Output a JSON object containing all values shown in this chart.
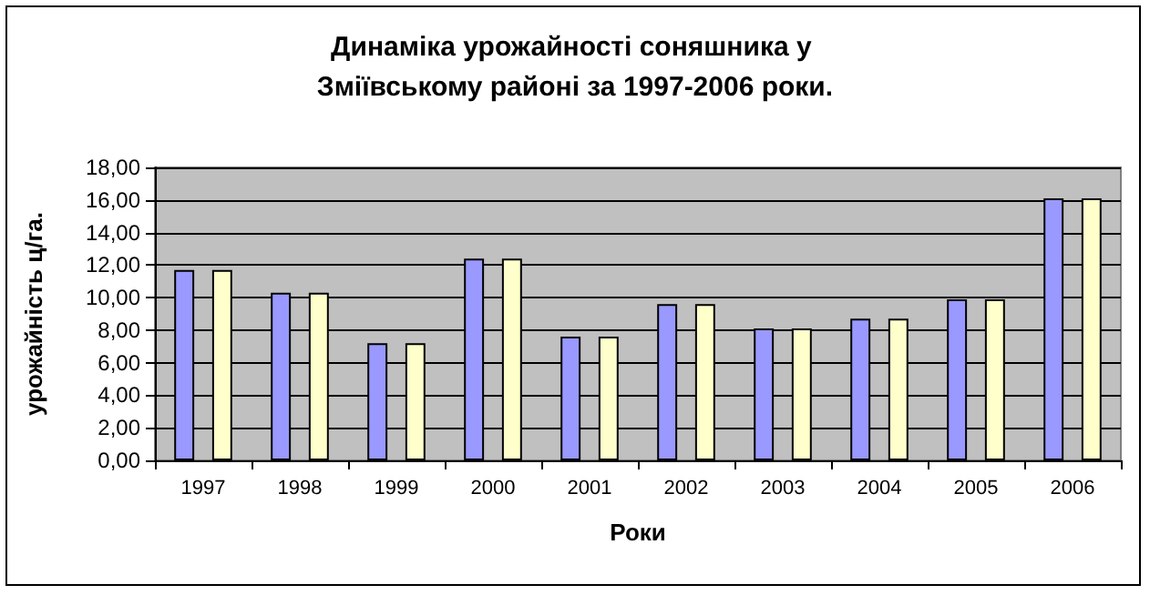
{
  "chart_data": {
    "type": "bar",
    "title": "Динаміка урожайності соняшника у Зміївському районі за 1997-2006 роки.",
    "xlabel": "Роки",
    "ylabel": "урожайність ц/га.",
    "categories": [
      "1997",
      "1998",
      "1999",
      "2000",
      "2001",
      "2002",
      "2003",
      "2004",
      "2005",
      "2006"
    ],
    "series": [
      {
        "color": "#9999ff",
        "values": [
          11.7,
          10.3,
          7.2,
          12.4,
          7.6,
          9.6,
          8.1,
          8.7,
          9.9,
          16.1
        ]
      },
      {
        "color": "#ffffcc",
        "values": [
          11.7,
          10.3,
          7.2,
          12.4,
          7.6,
          9.6,
          8.1,
          8.7,
          9.9,
          16.1
        ]
      }
    ],
    "ylim": [
      0,
      18
    ],
    "yticks": [
      {
        "value": 0,
        "label": "0,00"
      },
      {
        "value": 2,
        "label": "2,00"
      },
      {
        "value": 4,
        "label": "4,00"
      },
      {
        "value": 6,
        "label": "6,00"
      },
      {
        "value": 8,
        "label": "8,00"
      },
      {
        "value": 10,
        "label": "10,00"
      },
      {
        "value": 12,
        "label": "12,00"
      },
      {
        "value": 14,
        "label": "14,00"
      },
      {
        "value": 16,
        "label": "16,00"
      },
      {
        "value": 18,
        "label": "18,00"
      }
    ],
    "grid": "y"
  }
}
